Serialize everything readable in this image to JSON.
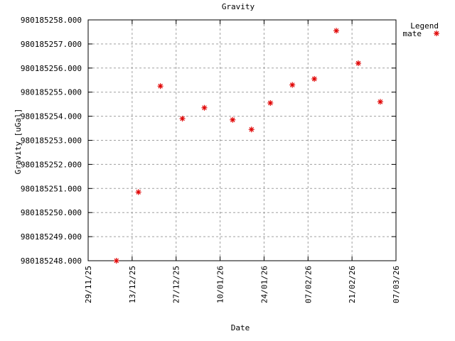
{
  "chart_data": {
    "type": "scatter",
    "title": "Gravity",
    "xlabel": "Date",
    "ylabel": "Gravity [uGal]",
    "x_ticks": [
      "29/11/25",
      "13/12/25",
      "27/12/25",
      "10/01/26",
      "24/01/26",
      "07/02/26",
      "21/02/26",
      "07/03/26"
    ],
    "y_ticks": [
      "980185248.000",
      "980185249.000",
      "980185250.000",
      "980185251.000",
      "980185252.000",
      "980185253.000",
      "980185254.000",
      "980185255.000",
      "980185256.000",
      "980185257.000",
      "980185258.000"
    ],
    "xlim": [
      "2025-11-29",
      "2026-03-07"
    ],
    "ylim": [
      980185248.0,
      980185258.0
    ],
    "grid": true,
    "legend": {
      "title": "Legend",
      "position": "top-right",
      "entries": [
        {
          "name": "mate",
          "color": "#e00000",
          "marker": "asterisk"
        }
      ]
    },
    "series": [
      {
        "name": "mate",
        "color": "#e00000",
        "points": [
          {
            "x": "2025-12-08",
            "y": 980185248.0
          },
          {
            "x": "2025-12-15",
            "y": 980185250.85
          },
          {
            "x": "2025-12-22",
            "y": 980185255.25
          },
          {
            "x": "2025-12-29",
            "y": 980185253.9
          },
          {
            "x": "2026-01-05",
            "y": 980185254.35
          },
          {
            "x": "2026-01-14",
            "y": 980185253.85
          },
          {
            "x": "2026-01-20",
            "y": 980185253.45
          },
          {
            "x": "2026-01-26",
            "y": 980185254.55
          },
          {
            "x": "2026-02-02",
            "y": 980185255.3
          },
          {
            "x": "2026-02-09",
            "y": 980185255.55
          },
          {
            "x": "2026-02-16",
            "y": 980185257.55
          },
          {
            "x": "2026-02-23",
            "y": 980185256.2
          },
          {
            "x": "2026-03-02",
            "y": 980185254.6
          }
        ]
      }
    ]
  }
}
